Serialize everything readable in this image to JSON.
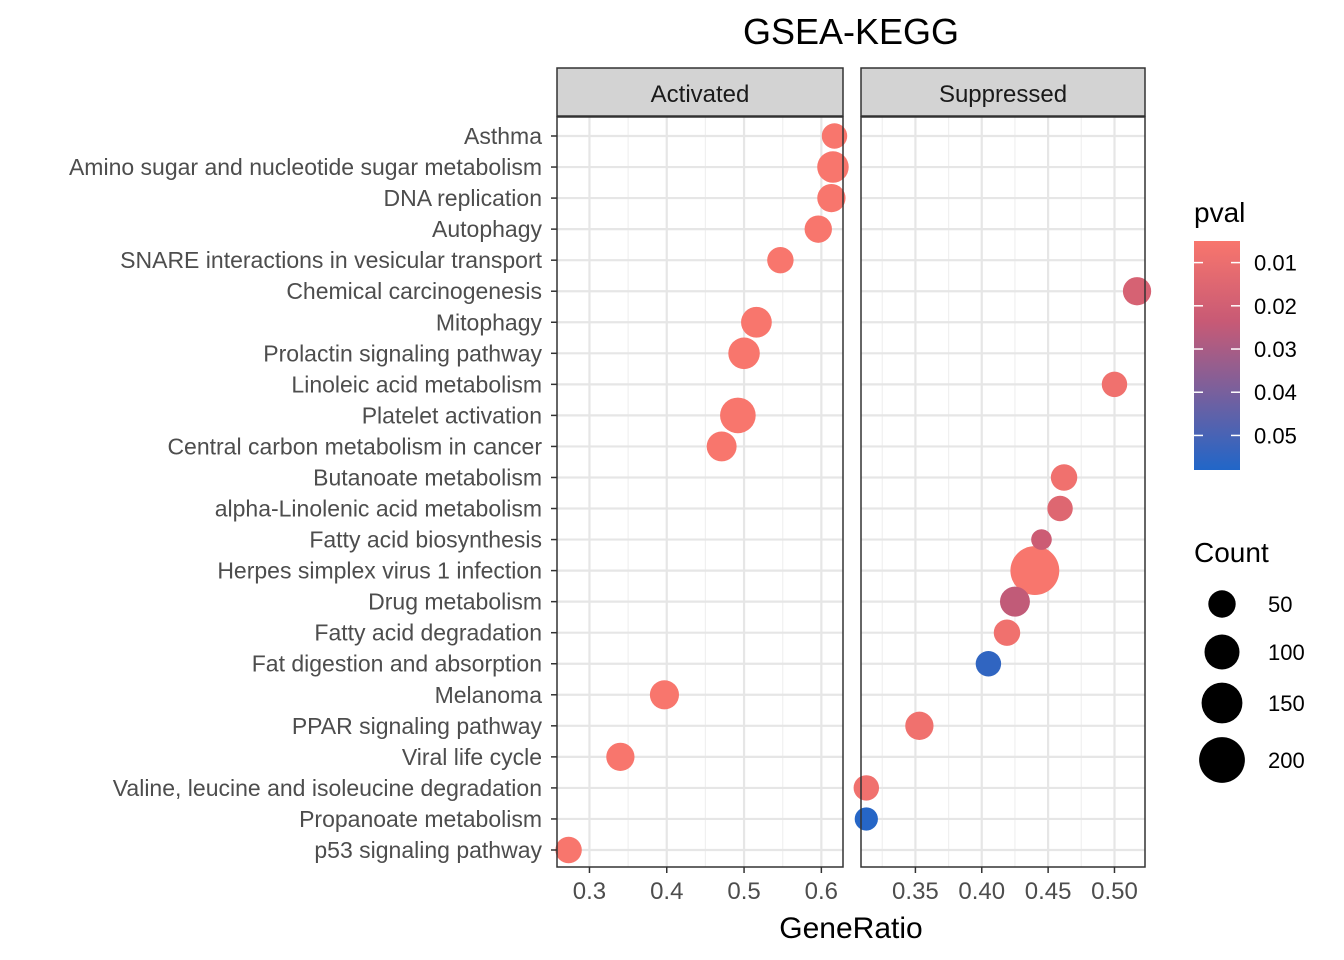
{
  "chart_data": {
    "type": "scatter",
    "title": "GSEA-KEGG",
    "xlabel": "GeneRatio",
    "ylabel": "",
    "categories": [
      "Asthma",
      "Amino sugar and nucleotide sugar metabolism",
      "DNA replication",
      "Autophagy",
      "SNARE interactions in vesicular transport",
      "Chemical carcinogenesis",
      "Mitophagy",
      "Prolactin signaling pathway",
      "Linoleic acid metabolism",
      "Platelet activation",
      "Central carbon metabolism in cancer",
      "Butanoate metabolism",
      "alpha-Linolenic acid metabolism",
      "Fatty acid biosynthesis",
      "Herpes simplex virus 1 infection",
      "Drug metabolism",
      "Fatty acid degradation",
      "Fat digestion and absorption",
      "Melanoma",
      "PPAR signaling pathway",
      "Viral life cycle",
      "Valine, leucine and isoleucine degradation",
      "Propanoate metabolism",
      "p53 signaling pathway"
    ],
    "panels": [
      {
        "name": "Activated",
        "xlim": [
          0.258,
          0.628
        ],
        "ticks": [
          0.3,
          0.4,
          0.5,
          0.6
        ],
        "tick_labels": [
          "0.3",
          "0.4",
          "0.5",
          "0.6"
        ],
        "points": [
          {
            "term": "Asthma",
            "x": 0.617,
            "count": 40,
            "pval": 0.005
          },
          {
            "term": "Amino sugar and nucleotide sugar metabolism",
            "x": 0.615,
            "count": 75,
            "pval": 0.005
          },
          {
            "term": "DNA replication",
            "x": 0.613,
            "count": 55,
            "pval": 0.005
          },
          {
            "term": "Autophagy",
            "x": 0.596,
            "count": 50,
            "pval": 0.005
          },
          {
            "term": "SNARE interactions in vesicular transport",
            "x": 0.547,
            "count": 45,
            "pval": 0.005
          },
          {
            "term": "Mitophagy",
            "x": 0.516,
            "count": 70,
            "pval": 0.005
          },
          {
            "term": "Prolactin signaling pathway",
            "x": 0.5,
            "count": 75,
            "pval": 0.005
          },
          {
            "term": "Platelet activation",
            "x": 0.492,
            "count": 105,
            "pval": 0.005
          },
          {
            "term": "Central carbon metabolism in cancer",
            "x": 0.471,
            "count": 65,
            "pval": 0.005
          },
          {
            "term": "Melanoma",
            "x": 0.397,
            "count": 60,
            "pval": 0.005
          },
          {
            "term": "Viral life cycle",
            "x": 0.34,
            "count": 55,
            "pval": 0.005
          },
          {
            "term": "p53 signaling pathway",
            "x": 0.273,
            "count": 45,
            "pval": 0.005
          }
        ]
      },
      {
        "name": "Suppressed",
        "xlim": [
          0.309,
          0.523
        ],
        "ticks": [
          0.35,
          0.4,
          0.45,
          0.5
        ],
        "tick_labels": [
          "0.35",
          "0.40",
          "0.45",
          "0.50"
        ],
        "points": [
          {
            "term": "Chemical carcinogenesis",
            "x": 0.517,
            "count": 55,
            "pval": 0.018
          },
          {
            "term": "Linoleic acid metabolism",
            "x": 0.5,
            "count": 40,
            "pval": 0.008
          },
          {
            "term": "Butanoate metabolism",
            "x": 0.462,
            "count": 45,
            "pval": 0.008
          },
          {
            "term": "alpha-Linolenic acid metabolism",
            "x": 0.459,
            "count": 40,
            "pval": 0.015
          },
          {
            "term": "Fatty acid biosynthesis",
            "x": 0.445,
            "count": 20,
            "pval": 0.022
          },
          {
            "term": "Herpes simplex virus 1 infection",
            "x": 0.44,
            "count": 235,
            "pval": 0.005
          },
          {
            "term": "Drug metabolism",
            "x": 0.425,
            "count": 65,
            "pval": 0.025
          },
          {
            "term": "Fatty acid degradation",
            "x": 0.419,
            "count": 45,
            "pval": 0.008
          },
          {
            "term": "Fat digestion and absorption",
            "x": 0.405,
            "count": 40,
            "pval": 0.055
          },
          {
            "term": "PPAR signaling pathway",
            "x": 0.353,
            "count": 55,
            "pval": 0.008
          },
          {
            "term": "Valine, leucine and isoleucine degradation",
            "x": 0.313,
            "count": 40,
            "pval": 0.008
          },
          {
            "term": "Propanoate metabolism",
            "x": 0.313,
            "count": 30,
            "pval": 0.057
          }
        ]
      }
    ],
    "color_legend": {
      "title": "pval",
      "min": 0.005,
      "max": 0.058,
      "low_color": "#F8766D",
      "mid_color": "#C85A75",
      "high_color": "#2166C8",
      "ticks": [
        0.01,
        0.02,
        0.03,
        0.04,
        0.05
      ],
      "tick_labels": [
        "0.01",
        "0.02",
        "0.03",
        "0.04",
        "0.05"
      ]
    },
    "size_legend": {
      "title": "Count",
      "values": [
        50,
        100,
        150,
        200
      ],
      "labels": [
        "50",
        "100",
        "150",
        "200"
      ]
    }
  }
}
